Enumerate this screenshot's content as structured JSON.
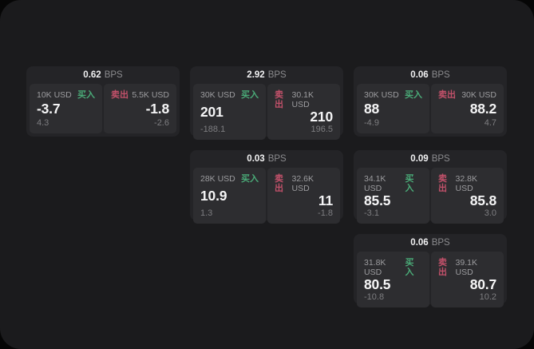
{
  "colors": {
    "buy": "#4aab78",
    "sell": "#c2516a",
    "background": "#1b1b1d",
    "card": "#242427",
    "panel": "#2d2d30"
  },
  "labels": {
    "buy": "买入",
    "sell": "卖出",
    "bps": "BPS"
  },
  "cards": [
    {
      "bps": "0.62",
      "buy": {
        "amount": "10K USD",
        "value": "-3.7",
        "sub": "4.3"
      },
      "sell": {
        "amount": "5.5K USD",
        "value": "-1.8",
        "sub": "-2.6"
      }
    },
    {
      "bps": "2.92",
      "buy": {
        "amount": "30K USD",
        "value": "201",
        "sub": "-188.1"
      },
      "sell": {
        "amount": "30.1K USD",
        "value": "210",
        "sub": "196.5"
      }
    },
    {
      "bps": "0.06",
      "buy": {
        "amount": "30K USD",
        "value": "88",
        "sub": "-4.9"
      },
      "sell": {
        "amount": "30K USD",
        "value": "88.2",
        "sub": "4.7"
      }
    },
    {
      "bps": "0.03",
      "buy": {
        "amount": "28K USD",
        "value": "10.9",
        "sub": "1.3"
      },
      "sell": {
        "amount": "32.6K USD",
        "value": "11",
        "sub": "-1.8"
      }
    },
    {
      "bps": "0.09",
      "buy": {
        "amount": "34.1K USD",
        "value": "85.5",
        "sub": "-3.1"
      },
      "sell": {
        "amount": "32.8K USD",
        "value": "85.8",
        "sub": "3.0"
      }
    },
    {
      "bps": "0.06",
      "buy": {
        "amount": "31.8K USD",
        "value": "80.5",
        "sub": "-10.8"
      },
      "sell": {
        "amount": "39.1K USD",
        "value": "80.7",
        "sub": "10.2"
      }
    }
  ]
}
